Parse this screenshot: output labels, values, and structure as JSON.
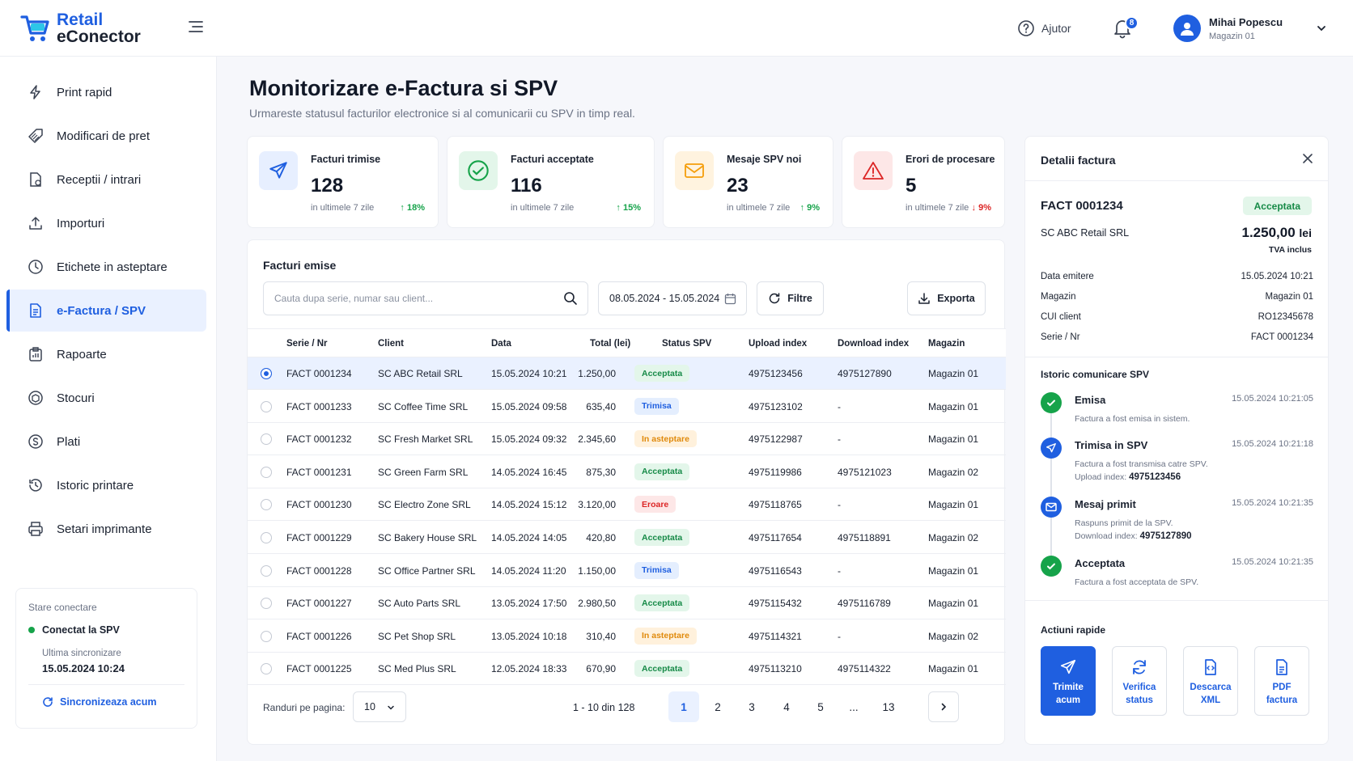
{
  "app": {
    "logo_line1": "Retail",
    "logo_line2": "eConector"
  },
  "header": {
    "help_label": "Ajutor",
    "notif_count": "8",
    "user_name": "Mihai Popescu",
    "user_store": "Magazin 01"
  },
  "sidebar": {
    "items": [
      {
        "label": "Print rapid",
        "icon": "bolt-icon"
      },
      {
        "label": "Modificari de pret",
        "icon": "price-tag-icon"
      },
      {
        "label": "Receptii / intrari",
        "icon": "receipt-icon"
      },
      {
        "label": "Importuri",
        "icon": "upload-icon"
      },
      {
        "label": "Etichete in asteptare",
        "icon": "clock-icon"
      },
      {
        "label": "e-Factura / SPV",
        "icon": "document-icon"
      },
      {
        "label": "Rapoarte",
        "icon": "report-icon"
      },
      {
        "label": "Stocuri",
        "icon": "box-icon"
      },
      {
        "label": "Plati",
        "icon": "coin-icon"
      },
      {
        "label": "Istoric printare",
        "icon": "history-icon"
      },
      {
        "label": "Setari imprimante",
        "icon": "printer-icon"
      }
    ],
    "connection": {
      "title": "Stare conectare",
      "status": "Conectat la SPV",
      "last_sync_label": "Ultima sincronizare",
      "last_sync_time": "15.05.2024  10:24",
      "sync_button": "Sincronizeaza acum"
    }
  },
  "page": {
    "title": "Monitorizare e-Factura si SPV",
    "subtitle": "Urmareste statusul facturilor electronice si al comunicarii cu SPV in timp real."
  },
  "stats": [
    {
      "title": "Facturi trimise",
      "value": "128",
      "period": "in ultimele 7 zile",
      "delta": "↑ 18%",
      "trend": "up",
      "icon": "send-icon",
      "color": "#1f5fe0"
    },
    {
      "title": "Facturi acceptate",
      "value": "116",
      "period": "in ultimele 7 zile",
      "delta": "↑ 15%",
      "trend": "up",
      "icon": "check-circle-icon",
      "color": "#16a34a"
    },
    {
      "title": "Mesaje SPV noi",
      "value": "23",
      "period": "in ultimele 7 zile",
      "delta": "↑ 9%",
      "trend": "up",
      "icon": "mail-icon",
      "color": "#f59e0b"
    },
    {
      "title": "Erori de procesare",
      "value": "5",
      "period": "in ultimele 7 zile",
      "delta": "↓ 9%",
      "trend": "down",
      "icon": "warning-icon",
      "color": "#dc2626"
    }
  ],
  "invoices": {
    "title": "Facturi emise",
    "search_placeholder": "Cauta dupa serie, numar sau client...",
    "date_range": "08.05.2024 - 15.05.2024",
    "filter_label": "Filtre",
    "export_label": "Exporta",
    "columns": [
      "Serie / Nr",
      "Client",
      "Data",
      "Total (lei)",
      "Status SPV",
      "Upload index",
      "Download index",
      "Magazin"
    ],
    "rows": [
      {
        "nr": "FACT 0001234",
        "client": "SC ABC Retail SRL",
        "date": "15.05.2024 10:21",
        "total": "1.250,00",
        "status": "Acceptata",
        "kind": "acc",
        "upload": "4975123456",
        "download": "4975127890",
        "store": "Magazin 01",
        "selected": true
      },
      {
        "nr": "FACT 0001233",
        "client": "SC Coffee Time SRL",
        "date": "15.05.2024 09:58",
        "total": "635,40",
        "status": "Trimisa",
        "kind": "tri",
        "upload": "4975123102",
        "download": "-",
        "store": "Magazin 01"
      },
      {
        "nr": "FACT 0001232",
        "client": "SC Fresh Market SRL",
        "date": "15.05.2024 09:32",
        "total": "2.345,60",
        "status": "In asteptare",
        "kind": "ast",
        "upload": "4975122987",
        "download": "-",
        "store": "Magazin 01"
      },
      {
        "nr": "FACT 0001231",
        "client": "SC Green Farm SRL",
        "date": "14.05.2024 16:45",
        "total": "875,30",
        "status": "Acceptata",
        "kind": "acc",
        "upload": "4975119986",
        "download": "4975121023",
        "store": "Magazin 02"
      },
      {
        "nr": "FACT 0001230",
        "client": "SC Electro Zone SRL",
        "date": "14.05.2024 15:12",
        "total": "3.120,00",
        "status": "Eroare",
        "kind": "err",
        "upload": "4975118765",
        "download": "-",
        "store": "Magazin 01"
      },
      {
        "nr": "FACT 0001229",
        "client": "SC Bakery House SRL",
        "date": "14.05.2024 14:05",
        "total": "420,80",
        "status": "Acceptata",
        "kind": "acc",
        "upload": "4975117654",
        "download": "4975118891",
        "store": "Magazin 02"
      },
      {
        "nr": "FACT 0001228",
        "client": "SC Office Partner SRL",
        "date": "14.05.2024 11:20",
        "total": "1.150,00",
        "status": "Trimisa",
        "kind": "tri",
        "upload": "4975116543",
        "download": "-",
        "store": "Magazin 01"
      },
      {
        "nr": "FACT 0001227",
        "client": "SC Auto Parts SRL",
        "date": "13.05.2024 17:50",
        "total": "2.980,50",
        "status": "Acceptata",
        "kind": "acc",
        "upload": "4975115432",
        "download": "4975116789",
        "store": "Magazin 01"
      },
      {
        "nr": "FACT 0001226",
        "client": "SC Pet Shop SRL",
        "date": "13.05.2024 10:18",
        "total": "310,40",
        "status": "In asteptare",
        "kind": "ast",
        "upload": "4975114321",
        "download": "-",
        "store": "Magazin 02"
      },
      {
        "nr": "FACT 0001225",
        "client": "SC Med Plus SRL",
        "date": "12.05.2024 18:33",
        "total": "670,90",
        "status": "Acceptata",
        "kind": "acc",
        "upload": "4975113210",
        "download": "4975114322",
        "store": "Magazin 01"
      }
    ],
    "rows_per_page_label": "Randuri pe pagina:",
    "rows_per_page": "10",
    "range": "1 - 10 din 128",
    "pages": [
      "1",
      "2",
      "3",
      "4",
      "5",
      "...",
      "13"
    ],
    "current_page": "1"
  },
  "detail": {
    "title": "Detalii factura",
    "invoice": "FACT 0001234",
    "status": "Acceptata",
    "client": "SC ABC Retail SRL",
    "amount": "1.250,00",
    "currency": "lei",
    "vat_note": "TVA inclus",
    "fields": [
      {
        "label": "Data emitere",
        "value": "15.05.2024 10:21"
      },
      {
        "label": "Magazin",
        "value": "Magazin 01"
      },
      {
        "label": "CUI client",
        "value": "RO12345678"
      },
      {
        "label": "Serie / Nr",
        "value": "FACT 0001234"
      }
    ],
    "history_title": "Istoric comunicare SPV",
    "history": [
      {
        "title": "Emisa",
        "time": "15.05.2024 10:21:05",
        "desc": "Factura a fost emisa in sistem.",
        "idx_label": "",
        "idx": "",
        "icon": "check-icon",
        "color": "#16a34a"
      },
      {
        "title": "Trimisa in SPV",
        "time": "15.05.2024 10:21:18",
        "desc": "Factura a fost transmisa catre SPV.",
        "idx_label": "Upload index:",
        "idx": "4975123456",
        "icon": "send-icon",
        "color": "#1f5fe0"
      },
      {
        "title": "Mesaj primit",
        "time": "15.05.2024 10:21:35",
        "desc": "Raspuns primit de la SPV.",
        "idx_label": "Download index:",
        "idx": "4975127890",
        "icon": "mail-icon",
        "color": "#1f5fe0"
      },
      {
        "title": "Acceptata",
        "time": "15.05.2024 10:21:35",
        "desc": "Factura a fost acceptata de SPV.",
        "idx_label": "",
        "idx": "",
        "icon": "check-icon",
        "color": "#16a34a"
      }
    ],
    "actions_title": "Actiuni rapide",
    "actions": [
      {
        "label": "Trimite acum",
        "icon": "send-icon"
      },
      {
        "label": "Verifica status",
        "icon": "refresh-icon"
      },
      {
        "label": "Descarca XML",
        "icon": "xml-file-icon"
      },
      {
        "label": "PDF factura",
        "icon": "pdf-file-icon"
      }
    ]
  }
}
